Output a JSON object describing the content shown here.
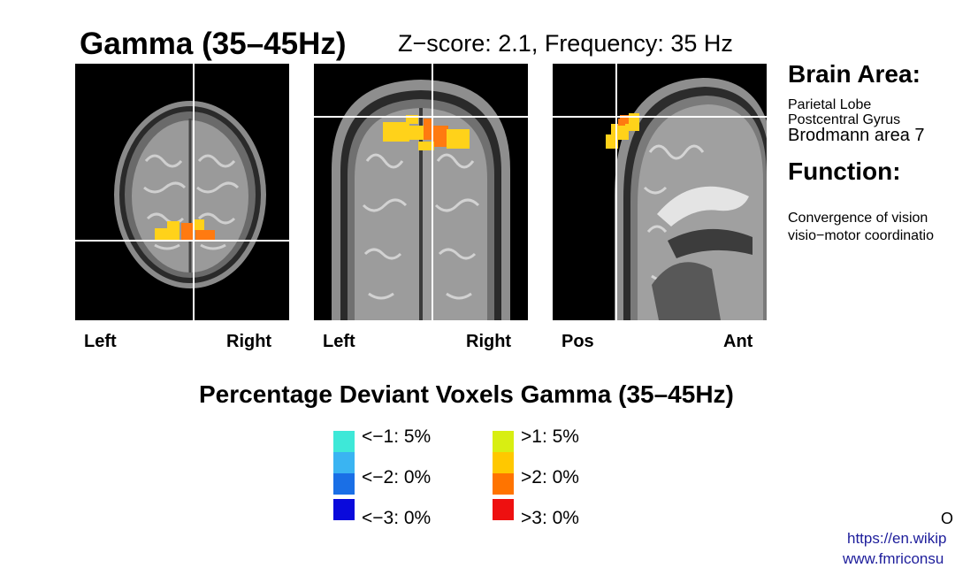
{
  "header": {
    "title": "Gamma (35–45Hz)",
    "subtitle": "Z−score: 2.1, Frequency: 35 Hz"
  },
  "views": [
    {
      "name": "axial",
      "left_label": "Left",
      "right_label": "Right"
    },
    {
      "name": "coronal",
      "left_label": "Left",
      "right_label": "Right"
    },
    {
      "name": "sagittal",
      "left_label": "Pos",
      "right_label": "Ant"
    }
  ],
  "sidebar": {
    "brain_area_heading": "Brain Area:",
    "lobe": "Parietal Lobe",
    "gyrus": "Postcentral Gyrus",
    "brodmann": "Brodmann area 7",
    "function_heading": "Function:",
    "function_line1": "Convergence of vision",
    "function_line2": "visio−motor coordinatio"
  },
  "legend": {
    "title": "Percentage Deviant Voxels Gamma (35–45Hz)",
    "negative": [
      {
        "label": "<−1:  5%",
        "color": "#3ee8d8"
      },
      {
        "label": "<−2:  0%",
        "color": "#3ab4f2"
      },
      {
        "label": "<−3:  0%",
        "color": "#1a6fe6"
      }
    ],
    "negative_extra_color": "#0a0adc",
    "positive": [
      {
        "label": ">1:  5%",
        "color": "#d8ee12"
      },
      {
        "label": ">2:  0%",
        "color": "#ffc800"
      },
      {
        "label": ">3:  0%",
        "color": "#ff7400"
      }
    ],
    "positive_extra_color": "#ee1010"
  },
  "footer": {
    "mark": "O",
    "link1": "https://en.wikip",
    "link2": "www.fmriconsu"
  },
  "colors": {
    "activation_yellow": "#ffd21a",
    "activation_orange": "#ff7a10",
    "crosshair": "#ffffff"
  }
}
